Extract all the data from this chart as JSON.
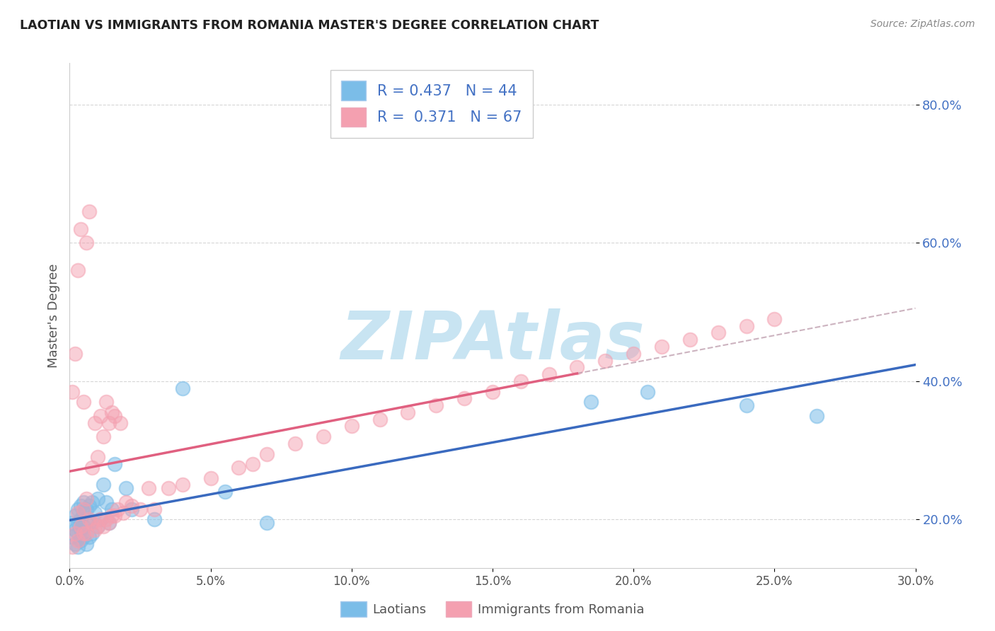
{
  "title": "LAOTIAN VS IMMIGRANTS FROM ROMANIA MASTER'S DEGREE CORRELATION CHART",
  "source_text": "Source: ZipAtlas.com",
  "ylabel": "Master's Degree",
  "xlim": [
    0.0,
    0.3
  ],
  "ylim": [
    0.13,
    0.86
  ],
  "xticks": [
    0.0,
    0.05,
    0.1,
    0.15,
    0.2,
    0.25,
    0.3
  ],
  "yticks": [
    0.2,
    0.4,
    0.6,
    0.8
  ],
  "ytick_labels": [
    "20.0%",
    "40.0%",
    "60.0%",
    "80.0%"
  ],
  "xtick_labels": [
    "0.0%",
    "",
    "5.0%",
    "",
    "10.0%",
    "",
    "15.0%",
    "",
    "20.0%",
    "",
    "25.0%",
    "",
    "30.0%"
  ],
  "r_laotian": 0.437,
  "n_laotian": 44,
  "r_romania": 0.371,
  "n_romania": 67,
  "laotian_color": "#7bbde8",
  "romania_color": "#f4a0b0",
  "laotian_line_color": "#3a6abf",
  "romania_line_color": "#e06080",
  "romania_dash_color": "#e8a0b0",
  "watermark": "ZIPAtlas",
  "watermark_color": "#c8e4f2",
  "laotian_x": [
    0.001,
    0.001,
    0.002,
    0.002,
    0.002,
    0.003,
    0.003,
    0.003,
    0.003,
    0.004,
    0.004,
    0.004,
    0.004,
    0.005,
    0.005,
    0.005,
    0.005,
    0.006,
    0.006,
    0.006,
    0.007,
    0.007,
    0.007,
    0.008,
    0.008,
    0.009,
    0.01,
    0.01,
    0.011,
    0.012,
    0.013,
    0.014,
    0.015,
    0.016,
    0.02,
    0.022,
    0.03,
    0.04,
    0.055,
    0.07,
    0.185,
    0.205,
    0.24,
    0.265
  ],
  "laotian_y": [
    0.175,
    0.195,
    0.165,
    0.185,
    0.205,
    0.16,
    0.18,
    0.195,
    0.215,
    0.17,
    0.185,
    0.2,
    0.22,
    0.175,
    0.19,
    0.21,
    0.225,
    0.165,
    0.195,
    0.215,
    0.175,
    0.195,
    0.22,
    0.18,
    0.225,
    0.21,
    0.19,
    0.23,
    0.2,
    0.25,
    0.225,
    0.195,
    0.215,
    0.28,
    0.245,
    0.215,
    0.2,
    0.39,
    0.24,
    0.195,
    0.37,
    0.385,
    0.365,
    0.35
  ],
  "romania_x": [
    0.001,
    0.001,
    0.002,
    0.002,
    0.003,
    0.003,
    0.003,
    0.004,
    0.004,
    0.005,
    0.005,
    0.005,
    0.006,
    0.006,
    0.006,
    0.007,
    0.007,
    0.008,
    0.008,
    0.009,
    0.009,
    0.01,
    0.01,
    0.011,
    0.011,
    0.012,
    0.012,
    0.013,
    0.013,
    0.014,
    0.014,
    0.015,
    0.015,
    0.016,
    0.016,
    0.017,
    0.018,
    0.019,
    0.02,
    0.022,
    0.025,
    0.028,
    0.03,
    0.035,
    0.04,
    0.05,
    0.06,
    0.065,
    0.07,
    0.08,
    0.09,
    0.1,
    0.11,
    0.12,
    0.13,
    0.14,
    0.15,
    0.16,
    0.17,
    0.18,
    0.19,
    0.2,
    0.21,
    0.22,
    0.23,
    0.24,
    0.25
  ],
  "romania_y": [
    0.16,
    0.385,
    0.18,
    0.44,
    0.17,
    0.21,
    0.56,
    0.19,
    0.62,
    0.18,
    0.215,
    0.37,
    0.18,
    0.23,
    0.6,
    0.2,
    0.645,
    0.195,
    0.275,
    0.185,
    0.34,
    0.19,
    0.29,
    0.2,
    0.35,
    0.19,
    0.32,
    0.2,
    0.37,
    0.195,
    0.34,
    0.205,
    0.355,
    0.205,
    0.35,
    0.215,
    0.34,
    0.21,
    0.225,
    0.22,
    0.215,
    0.245,
    0.215,
    0.245,
    0.25,
    0.26,
    0.275,
    0.28,
    0.295,
    0.31,
    0.32,
    0.335,
    0.345,
    0.355,
    0.365,
    0.375,
    0.385,
    0.4,
    0.41,
    0.42,
    0.43,
    0.44,
    0.45,
    0.46,
    0.47,
    0.48,
    0.49
  ]
}
